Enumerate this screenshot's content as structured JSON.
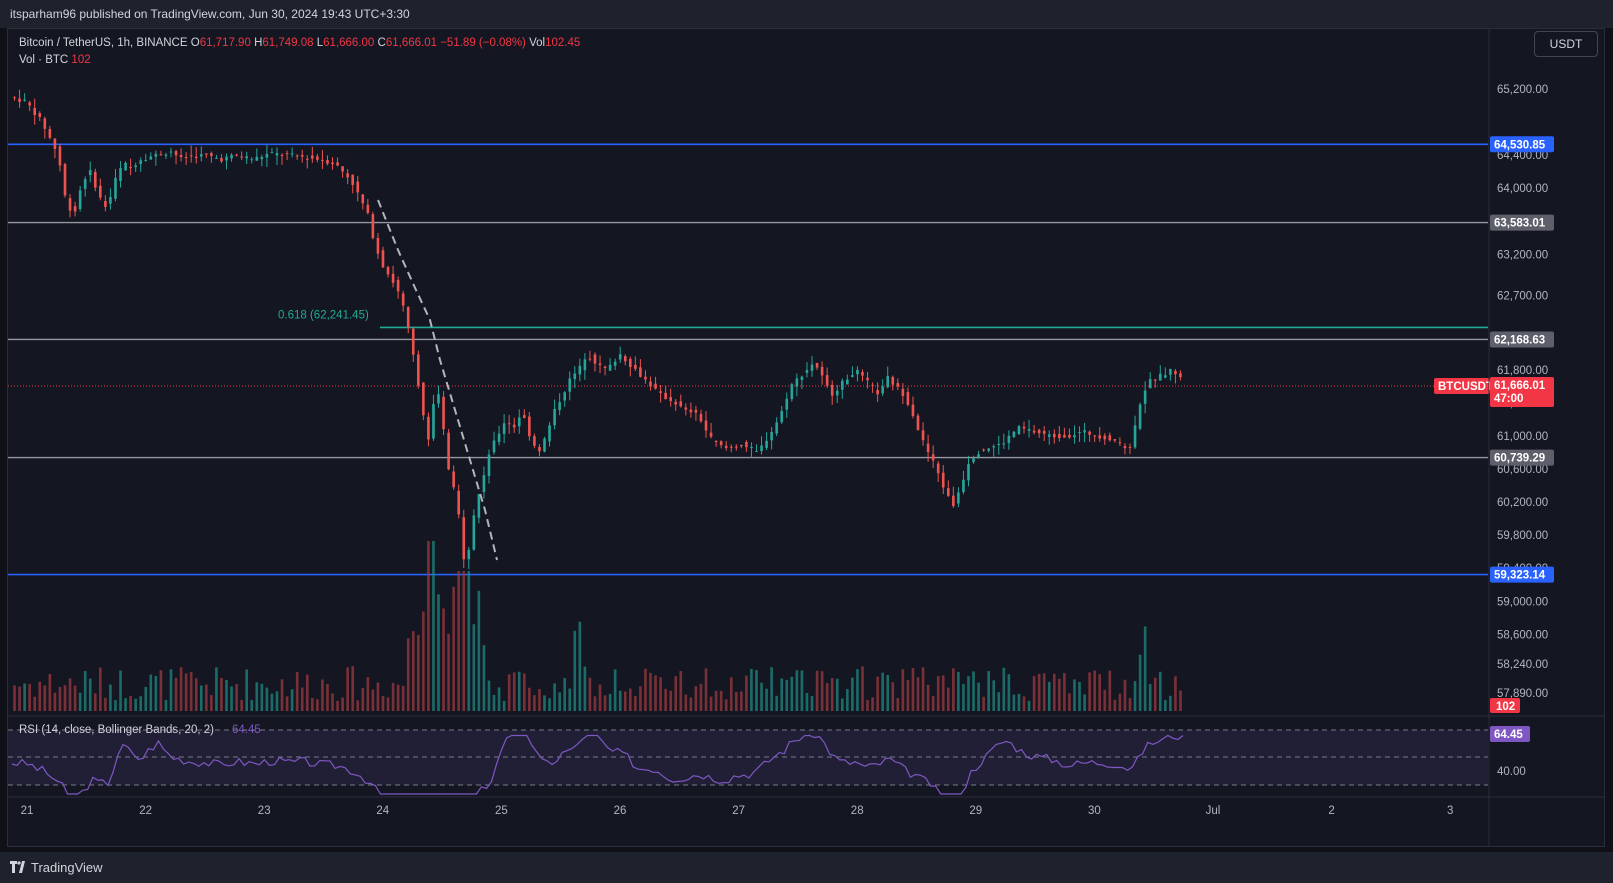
{
  "header": {
    "published": "itsparham96 published on TradingView.com, Jun 30, 2024 19:43 UTC+3:30"
  },
  "footer": {
    "brand": "TradingView"
  },
  "legend": {
    "symbol": "Bitcoin / TetherUS, 1h, BINANCE",
    "o_label": "O",
    "o_value": "61,717.90",
    "h_label": "H",
    "h_value": "61,749.08",
    "l_label": "L",
    "l_value": "61,666.00",
    "c_label": "C",
    "c_value": "61,666.01",
    "change": "−51.89 (−0.08%)",
    "vol_label": "Vol",
    "vol_value": "102.45",
    "vol_row_label": "Vol · BTC",
    "vol_row_value": "102"
  },
  "currency_button": "USDT",
  "colors": {
    "up": "#26a69a",
    "down": "#ef5350",
    "up_vol": "#1e8a80",
    "down_vol": "#9c3a3d",
    "blue_line": "#2962ff",
    "gray_line": "#9598a1",
    "fib_line": "#22ab94",
    "rsi": "#7e57c2"
  },
  "chart_data": [
    {
      "type": "candlestick",
      "title": "Bitcoin / TetherUS, 1h, BINANCE",
      "ylim": [
        57700,
        65500
      ],
      "x_ticks": [
        "21",
        "22",
        "23",
        "24",
        "25",
        "26",
        "27",
        "28",
        "29",
        "30",
        "Jul",
        "2",
        "3"
      ],
      "price_ticks": [
        "65,200.00",
        "64,400.00",
        "64,000.00",
        "63,200.00",
        "62,700.00",
        "61,800.00",
        "61,400.00",
        "61,000.00",
        "60,600.00",
        "60,200.00",
        "59,800.00",
        "59,400.00",
        "59,000.00",
        "58,600.00",
        "58,240.00",
        "57,890.00"
      ],
      "horizontal_levels": [
        {
          "value": 64530.85,
          "label": "64,530.85",
          "color": "#2962ff"
        },
        {
          "value": 63583.01,
          "label": "63,583.01",
          "color": "#9598a1"
        },
        {
          "value": 62168.63,
          "label": "62,168.63",
          "color": "#9598a1"
        },
        {
          "value": 60739.29,
          "label": "60,739.29",
          "color": "#9598a1"
        },
        {
          "value": 59323.14,
          "label": "59,323.14",
          "color": "#2962ff"
        }
      ],
      "fib_level": {
        "value": 62241.45,
        "label": "0.618 (62,241.45)"
      },
      "last_price": {
        "value": 61666.01,
        "label": "61,666.01",
        "countdown": "47:00",
        "symbol": "BTCUSDT"
      },
      "volume_label": "102",
      "price_path": [
        [
          0,
          65100
        ],
        [
          1,
          65050
        ],
        [
          2,
          64800
        ],
        [
          3,
          64400
        ],
        [
          3.5,
          63800
        ],
        [
          4,
          63700
        ],
        [
          4.5,
          64100
        ],
        [
          5,
          64200
        ],
        [
          5.5,
          63900
        ],
        [
          6,
          63750
        ],
        [
          6.5,
          64100
        ],
        [
          7,
          64300
        ],
        [
          7.5,
          64250
        ],
        [
          8,
          64350
        ],
        [
          9,
          64400
        ],
        [
          10,
          64450
        ],
        [
          10.5,
          64350
        ],
        [
          11,
          64380
        ],
        [
          12,
          64400
        ],
        [
          13,
          64350
        ],
        [
          14,
          64400
        ],
        [
          15,
          64350
        ],
        [
          16,
          64420
        ],
        [
          17,
          64400
        ],
        [
          18,
          64380
        ],
        [
          19,
          64350
        ],
        [
          20,
          64300
        ],
        [
          21,
          64100
        ],
        [
          21.5,
          63900
        ],
        [
          22,
          63700
        ],
        [
          22.5,
          63300
        ],
        [
          23,
          63050
        ],
        [
          23.5,
          62900
        ],
        [
          24,
          62700
        ],
        [
          24.3,
          62500
        ],
        [
          24.6,
          62200
        ],
        [
          25,
          61800
        ],
        [
          25.5,
          61200
        ],
        [
          25.8,
          60900
        ],
        [
          26,
          61300
        ],
        [
          26.3,
          61600
        ],
        [
          26.6,
          61200
        ],
        [
          27,
          60600
        ],
        [
          27.5,
          60200
        ],
        [
          27.8,
          59800
        ],
        [
          28,
          59400
        ],
        [
          28.3,
          59700
        ],
        [
          28.6,
          60100
        ],
        [
          29,
          60400
        ],
        [
          29.5,
          60800
        ],
        [
          30,
          61000
        ],
        [
          30.5,
          61200
        ],
        [
          31,
          61100
        ],
        [
          31.5,
          61300
        ],
        [
          32,
          61000
        ],
        [
          32.5,
          60800
        ],
        [
          33,
          61000
        ],
        [
          33.5,
          61300
        ],
        [
          34,
          61500
        ],
        [
          34.5,
          61700
        ],
        [
          35,
          61800
        ],
        [
          35.5,
          62000
        ],
        [
          36,
          61900
        ],
        [
          36.5,
          61800
        ],
        [
          37,
          61850
        ],
        [
          37.5,
          62000
        ],
        [
          38,
          61900
        ],
        [
          38.5,
          61800
        ],
        [
          39,
          61700
        ],
        [
          39.5,
          61600
        ],
        [
          40,
          61500
        ],
        [
          41,
          61400
        ],
        [
          41.5,
          61300
        ],
        [
          42,
          61300
        ],
        [
          42.5,
          61200
        ],
        [
          43,
          61000
        ],
        [
          43.5,
          60900
        ],
        [
          44,
          60850
        ],
        [
          45,
          60900
        ],
        [
          45.5,
          60850
        ],
        [
          46,
          60800
        ],
        [
          46.5,
          60950
        ],
        [
          47,
          61100
        ],
        [
          47.5,
          61300
        ],
        [
          48,
          61600
        ],
        [
          48.5,
          61700
        ],
        [
          49,
          61800
        ],
        [
          49.5,
          61900
        ],
        [
          50,
          61700
        ],
        [
          50.5,
          61500
        ],
        [
          51,
          61600
        ],
        [
          51.5,
          61700
        ],
        [
          52,
          61800
        ],
        [
          52.5,
          61700
        ],
        [
          53,
          61600
        ],
        [
          53.5,
          61500
        ],
        [
          54,
          61700
        ],
        [
          54.5,
          61600
        ],
        [
          55,
          61500
        ],
        [
          55.5,
          61300
        ],
        [
          56,
          61000
        ],
        [
          56.5,
          60800
        ],
        [
          57,
          60600
        ],
        [
          57.5,
          60350
        ],
        [
          58,
          60150
        ],
        [
          58.5,
          60400
        ],
        [
          59,
          60700
        ],
        [
          59.5,
          60800
        ],
        [
          60,
          60850
        ],
        [
          61,
          60900
        ],
        [
          61.5,
          61000
        ],
        [
          62,
          61100
        ],
        [
          63,
          61050
        ],
        [
          64,
          61000
        ],
        [
          65,
          61000
        ],
        [
          66,
          61050
        ],
        [
          67,
          61000
        ],
        [
          68,
          60950
        ],
        [
          68.5,
          60850
        ],
        [
          69,
          60900
        ],
        [
          69.5,
          61400
        ],
        [
          70,
          61650
        ],
        [
          70.5,
          61700
        ],
        [
          71,
          61750
        ],
        [
          71.5,
          61800
        ],
        [
          72,
          61700
        ]
      ],
      "rsi": {
        "title": "RSI (14, close, Bollinger Bands, 20, 2)",
        "value": "64.45",
        "tick": "40.00"
      }
    }
  ]
}
